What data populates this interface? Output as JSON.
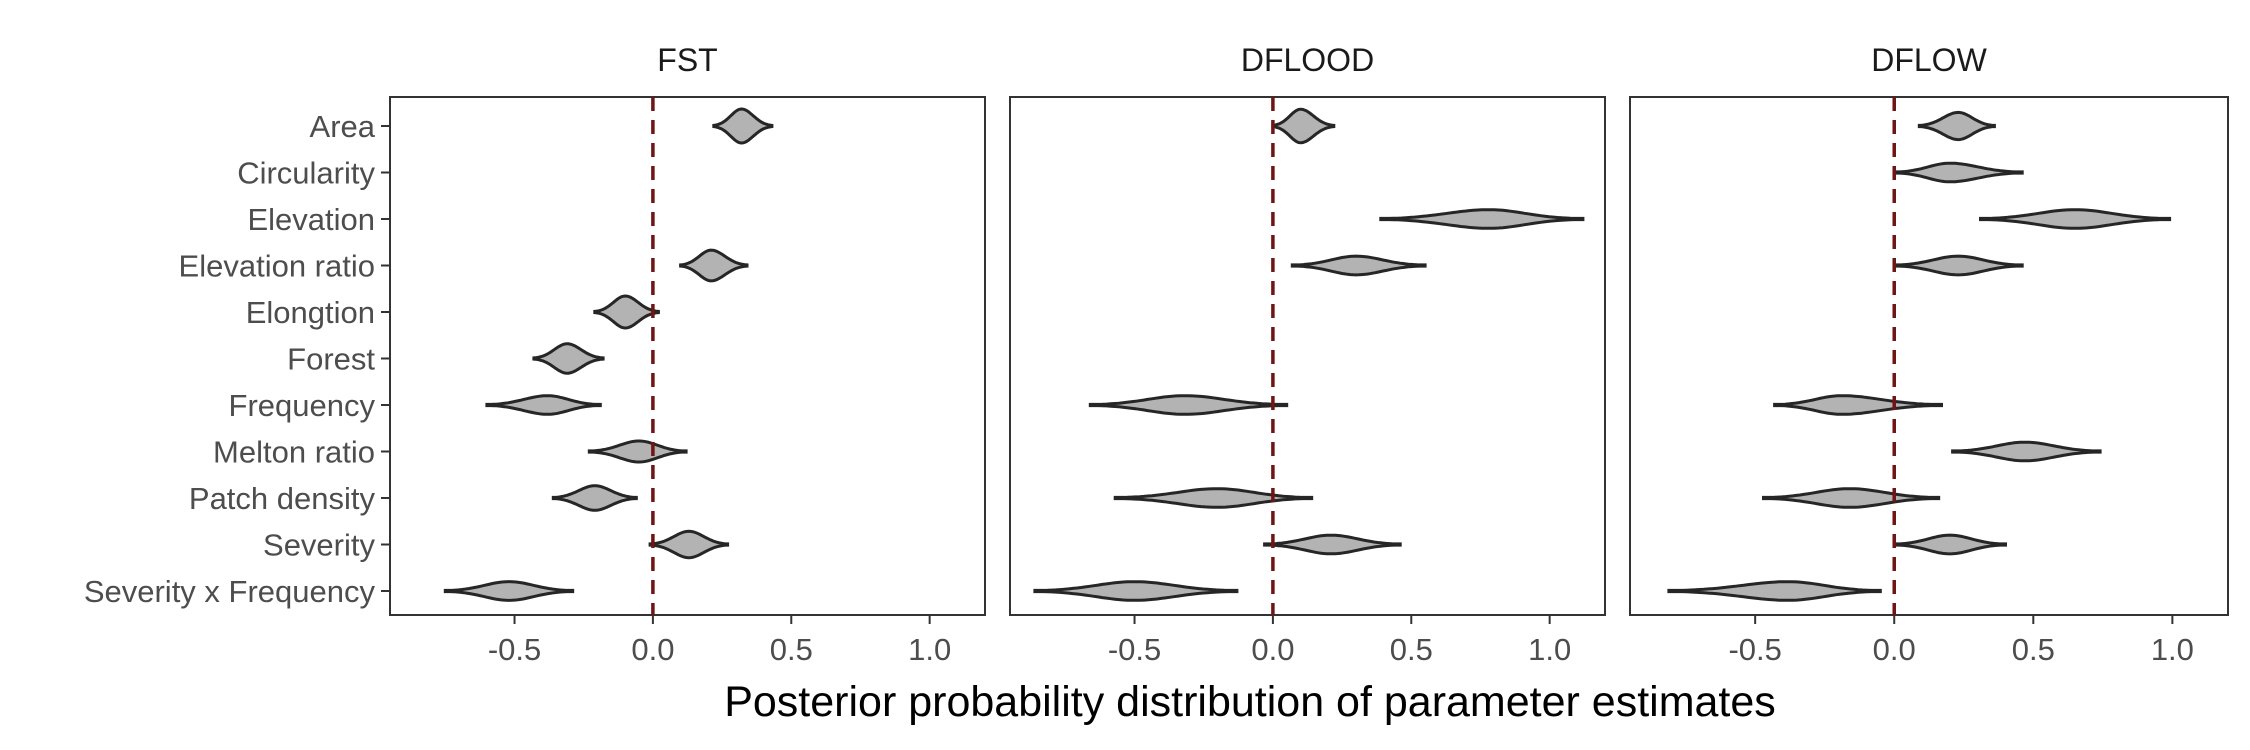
{
  "chart_data": {
    "type": "violin",
    "xlabel": "Posterior probability distribution of parameter estimates",
    "xlim": [
      -0.95,
      1.2
    ],
    "xticks": [
      -0.5,
      0.0,
      0.5,
      1.0
    ],
    "xtick_labels": [
      "-0.5",
      "0.0",
      "0.5",
      "1.0"
    ],
    "reference_line": {
      "x": 0.0,
      "style": "dashed",
      "color": "#6e1515"
    },
    "violin_fill": "#b3b3b3",
    "violin_outline": "#262626",
    "categories": [
      "Area",
      "Circularity",
      "Elevation",
      "Elevation ratio",
      "Elongtion",
      "Forest",
      "Frequency",
      "Melton ratio",
      "Patch density",
      "Severity",
      "Severity x Frequency"
    ],
    "panels": [
      {
        "name": "FST",
        "distributions": [
          {
            "category": "Area",
            "min": 0.22,
            "center": 0.32,
            "max": 0.43
          },
          {
            "category": "Elevation ratio",
            "min": 0.1,
            "center": 0.21,
            "max": 0.34
          },
          {
            "category": "Elongtion",
            "min": -0.21,
            "center": -0.1,
            "max": 0.02
          },
          {
            "category": "Forest",
            "min": -0.43,
            "center": -0.31,
            "max": -0.18
          },
          {
            "category": "Frequency",
            "min": -0.6,
            "center": -0.38,
            "max": -0.19
          },
          {
            "category": "Melton ratio",
            "min": -0.23,
            "center": -0.05,
            "max": 0.12
          },
          {
            "category": "Patch density",
            "min": -0.36,
            "center": -0.21,
            "max": -0.06
          },
          {
            "category": "Severity",
            "min": -0.01,
            "center": 0.13,
            "max": 0.27
          },
          {
            "category": "Severity x Frequency",
            "min": -0.75,
            "center": -0.52,
            "max": -0.29
          }
        ]
      },
      {
        "name": "DFLOOD",
        "distributions": [
          {
            "category": "Area",
            "min": 0.0,
            "center": 0.1,
            "max": 0.22
          },
          {
            "category": "Elevation",
            "min": 0.39,
            "center": 0.78,
            "max": 1.12
          },
          {
            "category": "Elevation ratio",
            "min": 0.07,
            "center": 0.3,
            "max": 0.55
          },
          {
            "category": "Frequency",
            "min": -0.66,
            "center": -0.32,
            "max": 0.05
          },
          {
            "category": "Patch density",
            "min": -0.57,
            "center": -0.2,
            "max": 0.14
          },
          {
            "category": "Severity",
            "min": -0.03,
            "center": 0.21,
            "max": 0.46
          },
          {
            "category": "Severity x Frequency",
            "min": -0.86,
            "center": -0.5,
            "max": -0.13
          }
        ]
      },
      {
        "name": "DFLOW",
        "distributions": [
          {
            "category": "Area",
            "min": 0.09,
            "center": 0.23,
            "max": 0.36
          },
          {
            "category": "Circularity",
            "min": 0.0,
            "center": 0.2,
            "max": 0.46
          },
          {
            "category": "Elevation",
            "min": 0.31,
            "center": 0.65,
            "max": 0.99
          },
          {
            "category": "Elevation ratio",
            "min": 0.0,
            "center": 0.23,
            "max": 0.46
          },
          {
            "category": "Frequency",
            "min": -0.43,
            "center": -0.19,
            "max": 0.17
          },
          {
            "category": "Melton ratio",
            "min": 0.21,
            "center": 0.47,
            "max": 0.74
          },
          {
            "category": "Patch density",
            "min": -0.47,
            "center": -0.16,
            "max": 0.16
          },
          {
            "category": "Severity",
            "min": 0.0,
            "center": 0.2,
            "max": 0.4
          },
          {
            "category": "Severity x Frequency",
            "min": -0.81,
            "center": -0.38,
            "max": -0.05
          }
        ]
      }
    ]
  }
}
